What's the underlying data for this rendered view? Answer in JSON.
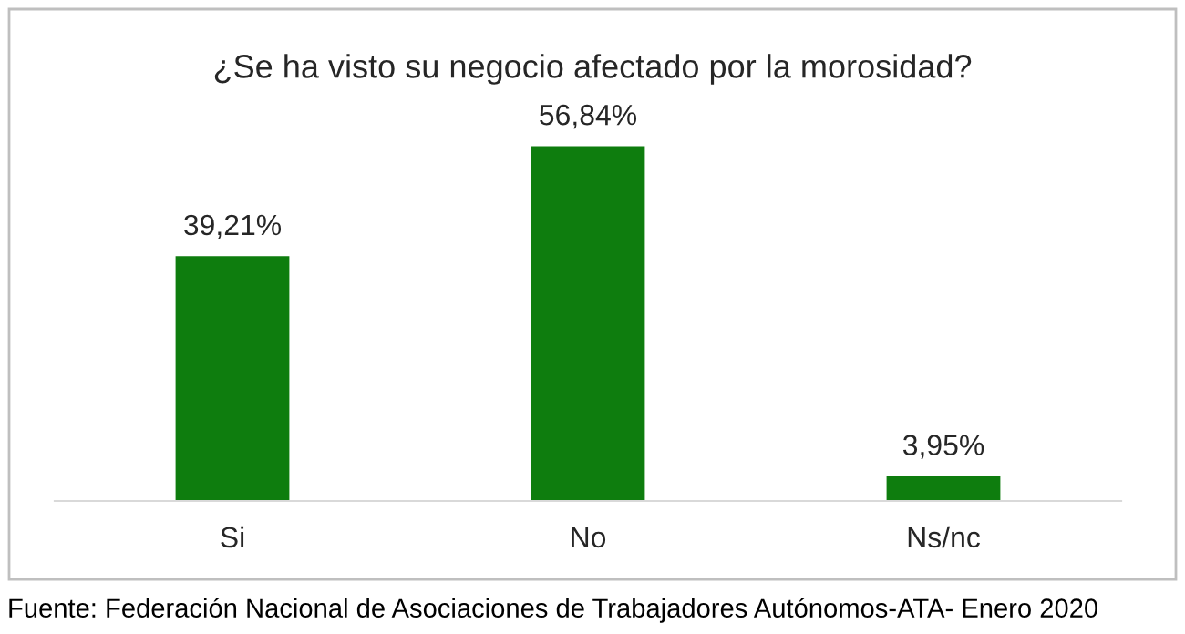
{
  "chart_data": {
    "type": "bar",
    "title": "¿Se ha visto su negocio afectado por la morosidad?",
    "categories": [
      "Si",
      "No",
      "Ns/nc"
    ],
    "values": [
      39.21,
      56.84,
      3.95
    ],
    "value_labels": [
      "39,21%",
      "56,84%",
      "3,95%"
    ],
    "color": "#0e7d0e",
    "grid": false,
    "legend": false,
    "annotations": [
      "Fuente: Federación Nacional de Asociaciones de Trabajadores Autónomos-ATA- Enero 2020"
    ]
  }
}
